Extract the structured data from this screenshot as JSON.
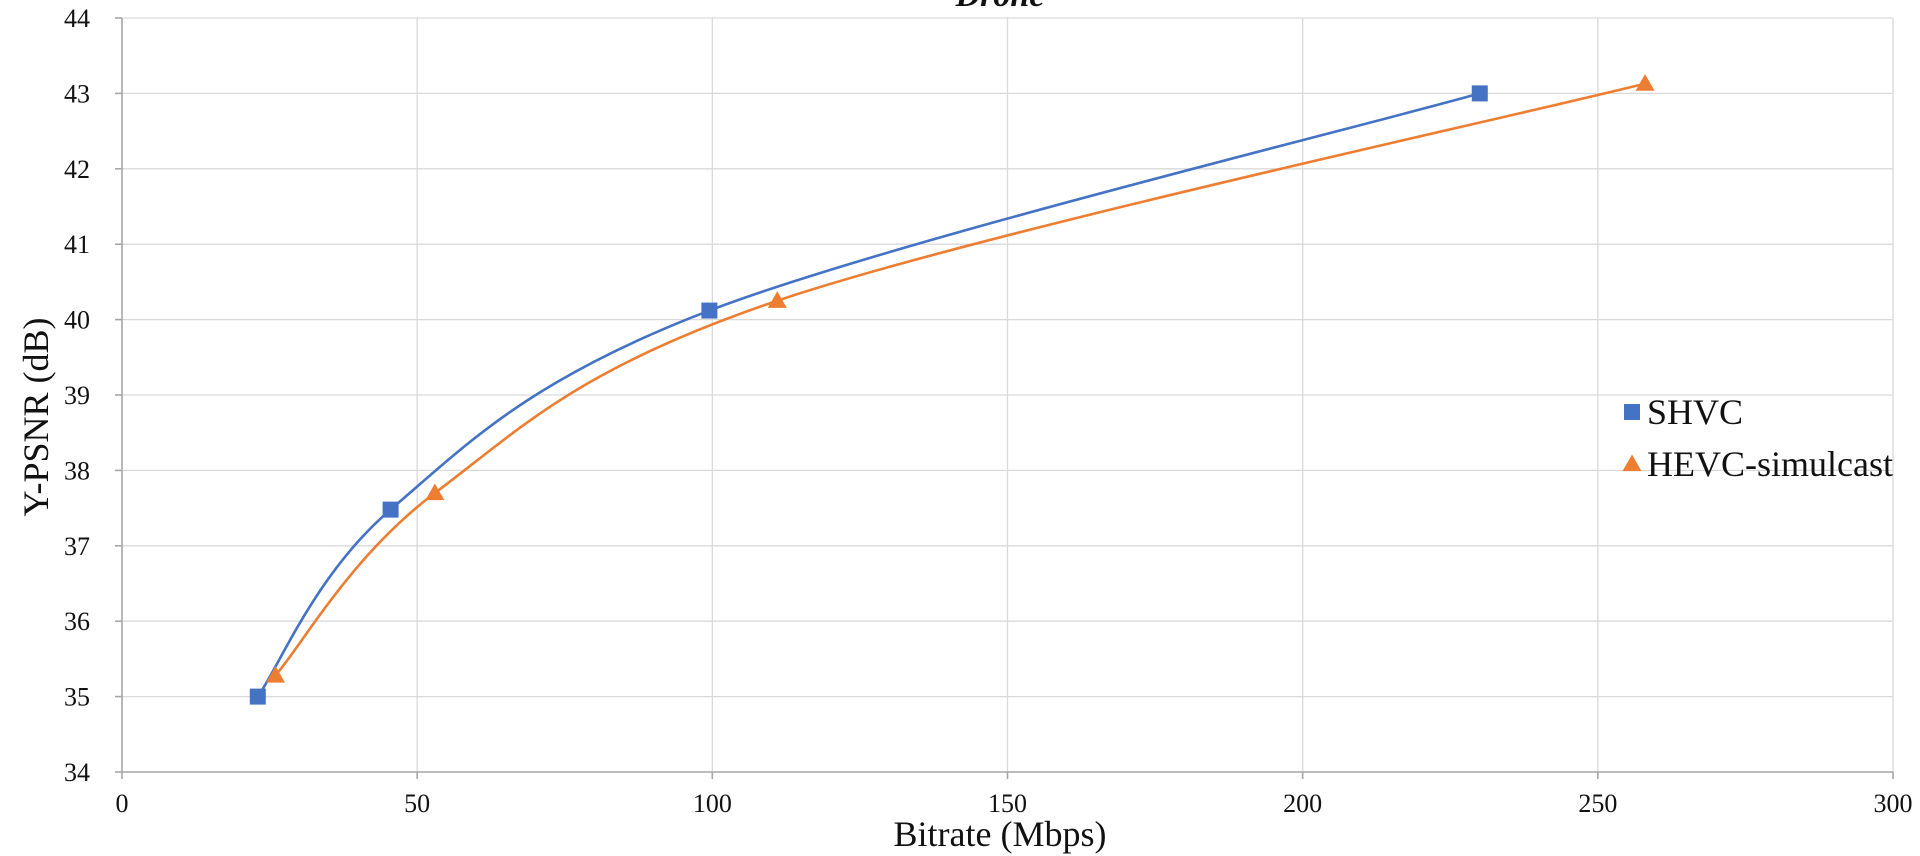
{
  "chart_data": {
    "type": "scatter",
    "title": "Drone",
    "xlabel": "Bitrate (Mbps)",
    "ylabel": "Y-PSNR (dB)",
    "xlim": [
      0,
      300
    ],
    "ylim": [
      34,
      44
    ],
    "xticks": [
      0,
      50,
      100,
      150,
      200,
      250,
      300
    ],
    "yticks": [
      34,
      35,
      36,
      37,
      38,
      39,
      40,
      41,
      42,
      43,
      44
    ],
    "grid": true,
    "smooth_lines": true,
    "legend_position": "right",
    "series": [
      {
        "name": "SHVC",
        "color": "#4472c4",
        "marker": "square",
        "points": [
          {
            "x": 23,
            "y": 35.0
          },
          {
            "x": 45.5,
            "y": 37.48
          },
          {
            "x": 99.5,
            "y": 40.12
          },
          {
            "x": 230,
            "y": 43.0
          }
        ]
      },
      {
        "name": "HEVC-simulcast",
        "color": "#ed7d31",
        "marker": "triangle",
        "points": [
          {
            "x": 26,
            "y": 35.28
          },
          {
            "x": 53,
            "y": 37.7
          },
          {
            "x": 111,
            "y": 40.25
          },
          {
            "x": 258,
            "y": 43.13
          }
        ]
      }
    ]
  }
}
